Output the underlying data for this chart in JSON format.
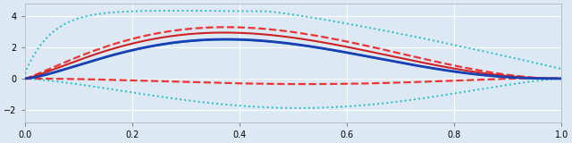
{
  "xlim": [
    0,
    1
  ],
  "ylim": [
    -2.8,
    4.8
  ],
  "yticks": [
    -2,
    0,
    2,
    4
  ],
  "xticks": [
    0,
    0.2,
    0.4,
    0.6,
    0.8,
    1.0
  ],
  "bg_color": "#dce9f5",
  "grid_color": "#ffffff",
  "blue_line_color": "#1a3fb5",
  "red_line_color": "#cc2222",
  "teal_line_color": "#00aaaa",
  "red_dash_color": "#ee3333",
  "cyan_dot_color": "#22bbcc",
  "n_points": 500
}
